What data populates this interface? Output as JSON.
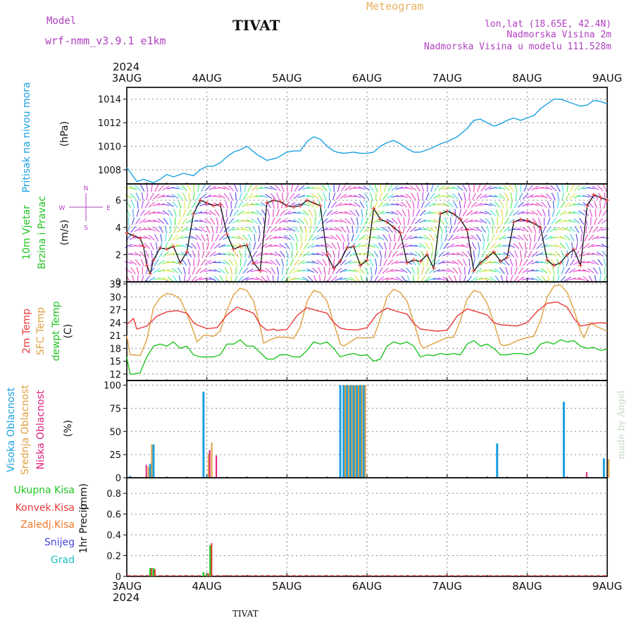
{
  "header": {
    "model_label": "Model",
    "model_name": "wrf-nmm_v3.9.1 e1km",
    "station": "TIVAT",
    "product": "Meteogram",
    "lonlat": "lon,lat (18.65E, 42.4N)",
    "elevation": "Nadmorska Visina 2m",
    "model_elevation": "Nadmorska Visina u modelu 111.528m",
    "year": "2024",
    "footer_station": "TIVAT",
    "credit": "made by Angel"
  },
  "time_axis": {
    "start": "2024-08-03T00:00",
    "labels": [
      "3AUG",
      "4AUG",
      "5AUG",
      "6AUG",
      "7AUG",
      "8AUG",
      "9AUG"
    ],
    "year_label": "2024"
  },
  "colors": {
    "pressure": "#1aa0e0",
    "temp2m": "#e83a3a",
    "sfc_temp": "#e0a040",
    "dewpt": "#22c422",
    "high_cloud": "#1aa0e0",
    "mid_cloud": "#e0a040",
    "low_cloud": "#e0207a",
    "total_precip": "#22c422",
    "conv_precip": "#e83a3a",
    "frozen_precip": "#f07828",
    "snow": "#4444dd",
    "graupel": "#20c0c0",
    "model_text": "#b040c0",
    "meteogram_text": "#e8b060"
  },
  "chart_data": [
    {
      "type": "line",
      "panel": "pressure",
      "ylabel_lines": [
        "Pritisak na nivou mora"
      ],
      "unit": "(hPa)",
      "ylim": [
        1006.8,
        1015.0
      ],
      "yticks": [
        1008,
        1010,
        1012,
        1014
      ],
      "grid": true,
      "series": [
        {
          "name": "Pritisak na nivou mora",
          "x_hours": [
            0,
            2,
            3,
            5,
            8,
            10,
            12,
            14,
            17,
            20,
            22,
            24,
            26,
            28,
            30,
            32,
            34,
            36,
            39,
            42,
            45,
            48,
            50,
            52,
            54,
            56,
            58,
            60,
            62,
            63,
            65,
            68,
            70,
            72,
            74,
            76,
            78,
            80,
            82,
            84,
            86,
            88,
            91,
            94,
            96,
            99,
            102,
            104,
            106,
            108,
            110,
            112,
            114,
            116,
            118,
            120,
            122,
            124,
            126,
            128,
            130,
            132,
            134,
            136,
            138,
            140,
            142,
            143,
            144
          ],
          "values": [
            1008.2,
            1007.4,
            1007.0,
            1007.2,
            1006.9,
            1007.2,
            1007.6,
            1007.4,
            1007.7,
            1007.5,
            1008.0,
            1008.3,
            1008.3,
            1008.6,
            1009.1,
            1009.5,
            1009.7,
            1010.0,
            1009.3,
            1008.8,
            1009.0,
            1009.5,
            1009.6,
            1009.6,
            1010.4,
            1010.8,
            1010.6,
            1010.0,
            1009.6,
            1009.5,
            1009.4,
            1009.5,
            1009.4,
            1009.4,
            1009.5,
            1010.0,
            1010.3,
            1010.5,
            1010.2,
            1009.8,
            1009.5,
            1009.5,
            1009.8,
            1010.2,
            1010.4,
            1010.8,
            1011.5,
            1012.2,
            1012.3,
            1012.0,
            1011.7,
            1011.9,
            1012.2,
            1012.4,
            1012.2,
            1012.4,
            1012.6,
            1013.2,
            1013.6,
            1014.0,
            1014.0,
            1013.8,
            1013.6,
            1013.4,
            1013.5,
            1013.9,
            1013.8,
            1013.7,
            1013.6
          ]
        }
      ]
    },
    {
      "type": "line",
      "panel": "wind",
      "ylabel_lines": [
        "10m Vjetar",
        "Brzina i Pravac"
      ],
      "unit": "(m/s)",
      "compass": {
        "north": "N",
        "south": "S",
        "west": "W",
        "east": "E"
      },
      "ylim": [
        0,
        7.2
      ],
      "yticks": [
        0,
        2,
        4,
        6
      ],
      "grid": true,
      "series": [
        {
          "name": "Brzina",
          "x_hours": [
            0,
            2,
            4,
            5,
            6,
            7,
            8,
            10,
            12,
            14,
            16,
            18,
            20,
            22,
            24,
            26,
            28,
            30,
            32,
            34,
            36,
            38,
            40,
            42,
            44,
            46,
            48,
            50,
            52,
            54,
            56,
            58,
            60,
            62,
            64,
            66,
            68,
            70,
            72,
            74,
            76,
            78,
            80,
            82,
            84,
            86,
            88,
            90,
            92,
            94,
            96,
            98,
            100,
            102,
            104,
            106,
            108,
            110,
            112,
            114,
            116,
            118,
            120,
            122,
            124,
            126,
            128,
            130,
            132,
            134,
            136,
            138,
            140,
            142,
            144
          ],
          "values": [
            3.6,
            3.4,
            3.2,
            2.6,
            1.2,
            0.6,
            1.6,
            2.5,
            2.4,
            2.6,
            1.4,
            2.2,
            5.0,
            6.0,
            5.8,
            5.6,
            5.7,
            3.5,
            2.4,
            2.6,
            2.7,
            1.4,
            0.8,
            5.8,
            6.0,
            5.9,
            5.6,
            5.5,
            5.6,
            6.0,
            5.8,
            5.6,
            2.0,
            1.0,
            1.5,
            2.5,
            2.6,
            1.2,
            1.6,
            5.4,
            4.6,
            4.4,
            4.0,
            3.6,
            1.4,
            1.6,
            1.5,
            2.0,
            1.0,
            5.0,
            5.2,
            5.0,
            4.6,
            3.8,
            0.8,
            1.4,
            1.8,
            2.2,
            1.5,
            1.8,
            4.4,
            4.6,
            4.5,
            4.3,
            4.0,
            1.6,
            1.2,
            1.4,
            2.0,
            2.4,
            1.2,
            5.6,
            6.4,
            6.2,
            6.0
          ]
        }
      ]
    },
    {
      "type": "line",
      "panel": "temperature",
      "ylabel_lines": [
        "2m Temp",
        "SFC Temp",
        "dewpt Temp"
      ],
      "unit": "(C)",
      "ylim": [
        10.5,
        33.5
      ],
      "yticks": [
        12,
        15,
        18,
        21,
        24,
        27,
        30,
        33
      ],
      "grid": true,
      "series": [
        {
          "name": "2m Temp",
          "x_hours": [
            0,
            2,
            3,
            6,
            9,
            12,
            15,
            18,
            20,
            21,
            24,
            27,
            30,
            33,
            36,
            38,
            40,
            42,
            44,
            45,
            48,
            51,
            54,
            57,
            60,
            62,
            64,
            66,
            69,
            72,
            75,
            78,
            81,
            84,
            86,
            88,
            90,
            93,
            96,
            99,
            102,
            105,
            108,
            110,
            112,
            114,
            117,
            120,
            123,
            126,
            129,
            132,
            134,
            136,
            138,
            140,
            142,
            144
          ],
          "values": [
            23.5,
            25.0,
            22.5,
            23.2,
            25.5,
            26.5,
            26.8,
            26.2,
            24.0,
            23.5,
            22.6,
            22.8,
            25.8,
            27.6,
            26.8,
            26.2,
            23.5,
            22.2,
            22.5,
            22.2,
            22.4,
            25.6,
            27.5,
            26.8,
            26.2,
            24.0,
            22.7,
            22.4,
            22.3,
            22.8,
            26.0,
            27.4,
            26.6,
            26.0,
            23.8,
            22.5,
            22.3,
            22.0,
            22.2,
            25.5,
            27.2,
            26.5,
            25.8,
            24.0,
            23.5,
            23.4,
            23.2,
            24.0,
            26.6,
            28.5,
            28.8,
            27.6,
            25.0,
            23.2,
            23.5,
            23.8,
            24.0,
            23.8
          ]
        },
        {
          "name": "SFC Temp",
          "x_hours": [
            0,
            1,
            2,
            4,
            6,
            8,
            10,
            12,
            14,
            16,
            18,
            20,
            21,
            23,
            24,
            26,
            28,
            30,
            32,
            34,
            36,
            38,
            40,
            41,
            43,
            45,
            48,
            50,
            52,
            54,
            56,
            58,
            60,
            62,
            64,
            65,
            67,
            69,
            72,
            74,
            76,
            78,
            80,
            82,
            84,
            86,
            88,
            89,
            91,
            93,
            96,
            98,
            100,
            102,
            104,
            106,
            108,
            110,
            112,
            113,
            115,
            117,
            120,
            122,
            124,
            126,
            128,
            130,
            132,
            134,
            136,
            137,
            139,
            141,
            144
          ],
          "values": [
            21.0,
            16.5,
            16.5,
            16.3,
            20.0,
            27.5,
            29.8,
            30.8,
            30.5,
            29.5,
            26.0,
            22.0,
            19.5,
            21.0,
            21.0,
            20.8,
            22.0,
            27.0,
            30.5,
            32.0,
            31.5,
            29.0,
            23.0,
            19.2,
            20.0,
            20.6,
            20.6,
            20.3,
            23.0,
            29.0,
            31.5,
            31.0,
            29.0,
            24.0,
            19.0,
            18.5,
            19.5,
            20.5,
            20.4,
            20.5,
            25.0,
            30.0,
            31.8,
            31.0,
            29.0,
            24.0,
            19.0,
            18.0,
            18.8,
            19.5,
            20.5,
            20.6,
            24.5,
            29.5,
            31.5,
            31.0,
            28.5,
            24.0,
            19.0,
            18.6,
            19.0,
            19.8,
            20.5,
            20.8,
            24.5,
            30.0,
            32.5,
            32.8,
            31.0,
            27.0,
            22.0,
            20.5,
            24.0,
            23.0,
            22.0
          ]
        },
        {
          "name": "dewpt Temp",
          "x_hours": [
            0,
            1,
            2,
            4,
            6,
            8,
            10,
            12,
            14,
            16,
            18,
            20,
            22,
            24,
            26,
            28,
            30,
            32,
            34,
            36,
            38,
            40,
            42,
            44,
            46,
            48,
            50,
            52,
            54,
            56,
            58,
            60,
            62,
            64,
            66,
            68,
            70,
            72,
            74,
            76,
            78,
            80,
            82,
            84,
            86,
            88,
            90,
            92,
            94,
            96,
            98,
            100,
            102,
            104,
            106,
            108,
            110,
            112,
            114,
            116,
            118,
            120,
            122,
            124,
            126,
            128,
            130,
            132,
            134,
            136,
            138,
            140,
            142,
            144
          ],
          "values": [
            16.0,
            12.0,
            12.0,
            12.3,
            16.0,
            18.5,
            19.0,
            18.5,
            19.5,
            18.0,
            18.5,
            16.5,
            16.0,
            16.0,
            16.0,
            16.5,
            19.0,
            19.0,
            20.0,
            18.5,
            18.5,
            17.0,
            15.5,
            15.5,
            16.5,
            16.5,
            16.0,
            16.0,
            17.5,
            19.5,
            19.0,
            19.5,
            18.0,
            16.0,
            16.5,
            16.8,
            16.3,
            16.5,
            15.0,
            15.5,
            18.5,
            19.5,
            19.0,
            19.5,
            18.5,
            16.0,
            16.5,
            16.3,
            16.8,
            16.5,
            16.8,
            16.5,
            19.0,
            19.8,
            18.5,
            19.0,
            18.0,
            16.5,
            16.5,
            16.8,
            16.8,
            16.5,
            17.0,
            19.0,
            19.5,
            19.0,
            20.0,
            19.5,
            19.8,
            18.5,
            18.0,
            18.2,
            17.5,
            17.8
          ]
        }
      ]
    },
    {
      "type": "bar",
      "panel": "clouds",
      "ylabel_lines": [
        "Visoka Oblacnost",
        "Srednja Oblacnost",
        "Niska Oblacnost"
      ],
      "unit": "(%)",
      "ylim": [
        0,
        105
      ],
      "yticks": [
        0,
        25,
        50,
        75,
        100
      ],
      "grid": true,
      "series": [
        {
          "name": "Visoka Oblacnost",
          "x_hours": [
            1,
            7,
            8,
            23,
            24,
            64,
            65,
            66,
            67,
            68,
            69,
            70,
            71,
            111,
            131,
            143
          ],
          "values": [
            2,
            15,
            36,
            93,
            2,
            100,
            100,
            100,
            100,
            100,
            100,
            100,
            100,
            37,
            82,
            21
          ]
        },
        {
          "name": "Srednja Oblacnost",
          "x_hours": [
            6,
            7,
            24,
            25,
            65,
            66,
            67,
            68,
            69,
            70,
            71,
            144
          ],
          "values": [
            12,
            36,
            26,
            38,
            100,
            100,
            100,
            100,
            100,
            100,
            100,
            20
          ]
        },
        {
          "name": "Niska Oblacnost",
          "x_hours": [
            5,
            24,
            26,
            137
          ],
          "values": [
            14,
            30,
            24,
            6
          ]
        }
      ]
    },
    {
      "type": "bar",
      "panel": "precipitation",
      "ylabel_lines": [
        "1hr Precip"
      ],
      "unit": "(mm)",
      "ylim": [
        0,
        0.95
      ],
      "yticks": [
        0,
        0.2,
        0.4,
        0.6,
        0.8
      ],
      "grid": true,
      "series": [
        {
          "name": "Ukupna Kisa",
          "x_hours": [
            7,
            8,
            23,
            24,
            25
          ],
          "values": [
            0.08,
            0.08,
            0.04,
            0.02,
            0.3
          ]
        },
        {
          "name": "Konvek.Kisa",
          "x_hours": [
            7,
            8,
            24,
            25
          ],
          "values": [
            0.08,
            0.07,
            0.03,
            0.32
          ]
        },
        {
          "name": "Zaledj.Kisa",
          "x_hours": [],
          "values": []
        },
        {
          "name": "Snijeg",
          "x_hours": [],
          "values": []
        },
        {
          "name": "Grad",
          "x_hours": [],
          "values": []
        }
      ]
    }
  ]
}
